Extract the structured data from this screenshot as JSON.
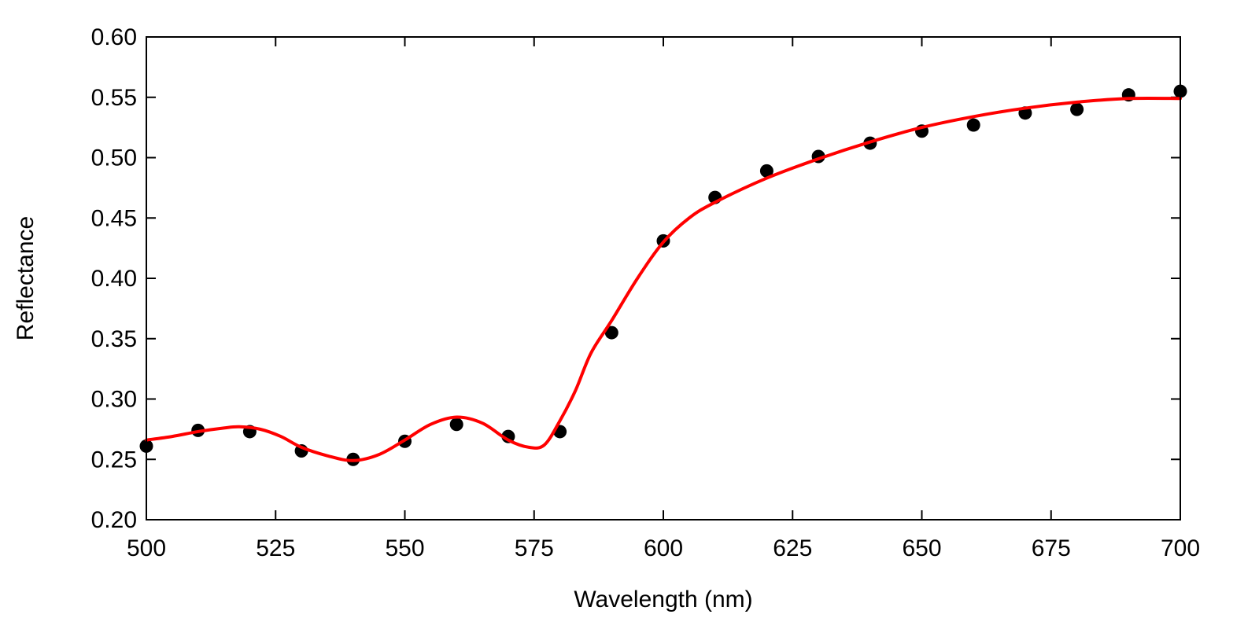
{
  "chart_data": {
    "type": "scatter",
    "title": "",
    "xlabel": "Wavelength (nm)",
    "ylabel": "Reflectance",
    "xlim": [
      500,
      700
    ],
    "ylim": [
      0.2,
      0.6
    ],
    "x_ticks": [
      {
        "value": 500,
        "label": "500"
      },
      {
        "value": 525,
        "label": "525"
      },
      {
        "value": 550,
        "label": "550"
      },
      {
        "value": 575,
        "label": "575"
      },
      {
        "value": 600,
        "label": "600"
      },
      {
        "value": 625,
        "label": "625"
      },
      {
        "value": 650,
        "label": "650"
      },
      {
        "value": 675,
        "label": "675"
      },
      {
        "value": 700,
        "label": "700"
      }
    ],
    "y_ticks": [
      {
        "value": 0.2,
        "label": "0.20"
      },
      {
        "value": 0.25,
        "label": "0.25"
      },
      {
        "value": 0.3,
        "label": "0.30"
      },
      {
        "value": 0.35,
        "label": "0.35"
      },
      {
        "value": 0.4,
        "label": "0.40"
      },
      {
        "value": 0.45,
        "label": "0.45"
      },
      {
        "value": 0.5,
        "label": "0.50"
      },
      {
        "value": 0.55,
        "label": "0.55"
      },
      {
        "value": 0.6,
        "label": "0.60"
      }
    ],
    "grid": false,
    "legend": "none",
    "series": [
      {
        "type": "scatter",
        "color": "#000000",
        "x": [
          500,
          510,
          520,
          530,
          540,
          550,
          560,
          570,
          580,
          590,
          600,
          610,
          620,
          630,
          640,
          650,
          660,
          670,
          680,
          690,
          700
        ],
        "y": [
          0.261,
          0.274,
          0.273,
          0.257,
          0.25,
          0.265,
          0.279,
          0.269,
          0.273,
          0.355,
          0.431,
          0.467,
          0.489,
          0.501,
          0.512,
          0.522,
          0.527,
          0.537,
          0.54,
          0.552,
          0.555
        ]
      },
      {
        "type": "line",
        "color": "#ff0000",
        "x": [
          500,
          505,
          510,
          515,
          518,
          522,
          526,
          530,
          535,
          540,
          545,
          550,
          555,
          560,
          565,
          570,
          574,
          577,
          580,
          583,
          586,
          590,
          595,
          600,
          605,
          610,
          620,
          630,
          640,
          650,
          660,
          670,
          680,
          690,
          700
        ],
        "y": [
          0.266,
          0.269,
          0.273,
          0.276,
          0.277,
          0.275,
          0.269,
          0.26,
          0.253,
          0.249,
          0.254,
          0.266,
          0.279,
          0.285,
          0.28,
          0.266,
          0.26,
          0.262,
          0.282,
          0.307,
          0.338,
          0.365,
          0.4,
          0.43,
          0.45,
          0.463,
          0.483,
          0.499,
          0.513,
          0.525,
          0.534,
          0.541,
          0.546,
          0.549,
          0.549
        ]
      }
    ]
  }
}
